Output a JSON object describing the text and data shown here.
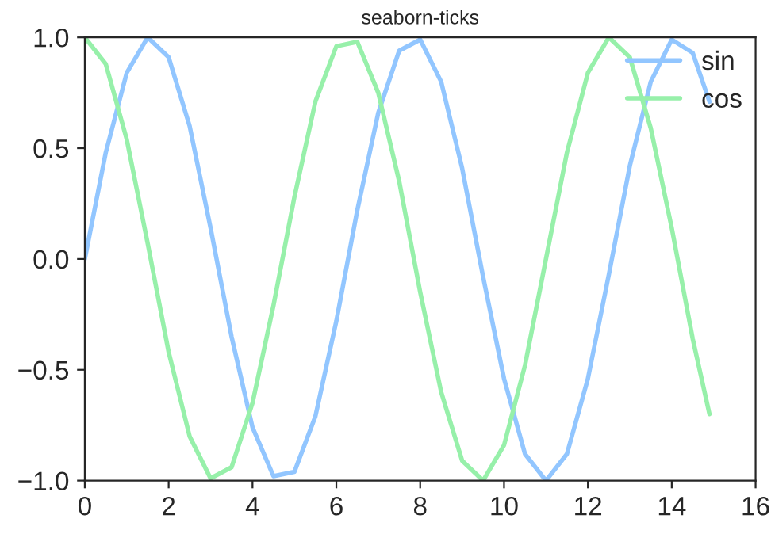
{
  "chart_data": {
    "type": "line",
    "title": "seaborn-ticks",
    "x": [
      0,
      0.5,
      1,
      1.5,
      2,
      2.5,
      3,
      3.5,
      4,
      4.5,
      5,
      5.5,
      6,
      6.5,
      7,
      7.5,
      8,
      8.5,
      9,
      9.5,
      10,
      10.5,
      11,
      11.5,
      12,
      12.5,
      13,
      13.5,
      14,
      14.5,
      14.9
    ],
    "series": [
      {
        "name": "sin",
        "color": "#92c6ff",
        "values": [
          0,
          0.48,
          0.84,
          1.0,
          0.91,
          0.6,
          0.14,
          -0.35,
          -0.76,
          -0.98,
          -0.96,
          -0.71,
          -0.28,
          0.22,
          0.66,
          0.94,
          0.99,
          0.8,
          0.41,
          -0.08,
          -0.54,
          -0.88,
          -1.0,
          -0.88,
          -0.54,
          -0.07,
          0.42,
          0.8,
          0.99,
          0.93,
          0.71
        ]
      },
      {
        "name": "cos",
        "color": "#97f0aa",
        "values": [
          1.0,
          0.88,
          0.54,
          0.07,
          -0.42,
          -0.8,
          -0.99,
          -0.94,
          -0.65,
          -0.21,
          0.28,
          0.71,
          0.96,
          0.98,
          0.75,
          0.35,
          -0.15,
          -0.6,
          -0.91,
          -1.0,
          -0.84,
          -0.48,
          0.0,
          0.48,
          0.84,
          1.0,
          0.91,
          0.59,
          0.14,
          -0.36,
          -0.7
        ]
      }
    ],
    "xlim": [
      0,
      16
    ],
    "xticks": [
      0,
      2,
      4,
      6,
      8,
      10,
      12,
      14,
      16
    ],
    "ylim": [
      -1.0,
      1.0
    ],
    "yticks": [
      {
        "value": -1.0,
        "label": "−1.0"
      },
      {
        "value": -0.5,
        "label": "−0.5"
      },
      {
        "value": 0.0,
        "label": "0.0"
      },
      {
        "value": 0.5,
        "label": "0.5"
      },
      {
        "value": 1.0,
        "label": "1.0"
      }
    ],
    "legend": "top right",
    "grid": false,
    "marker": "none",
    "line_style": "solid"
  }
}
